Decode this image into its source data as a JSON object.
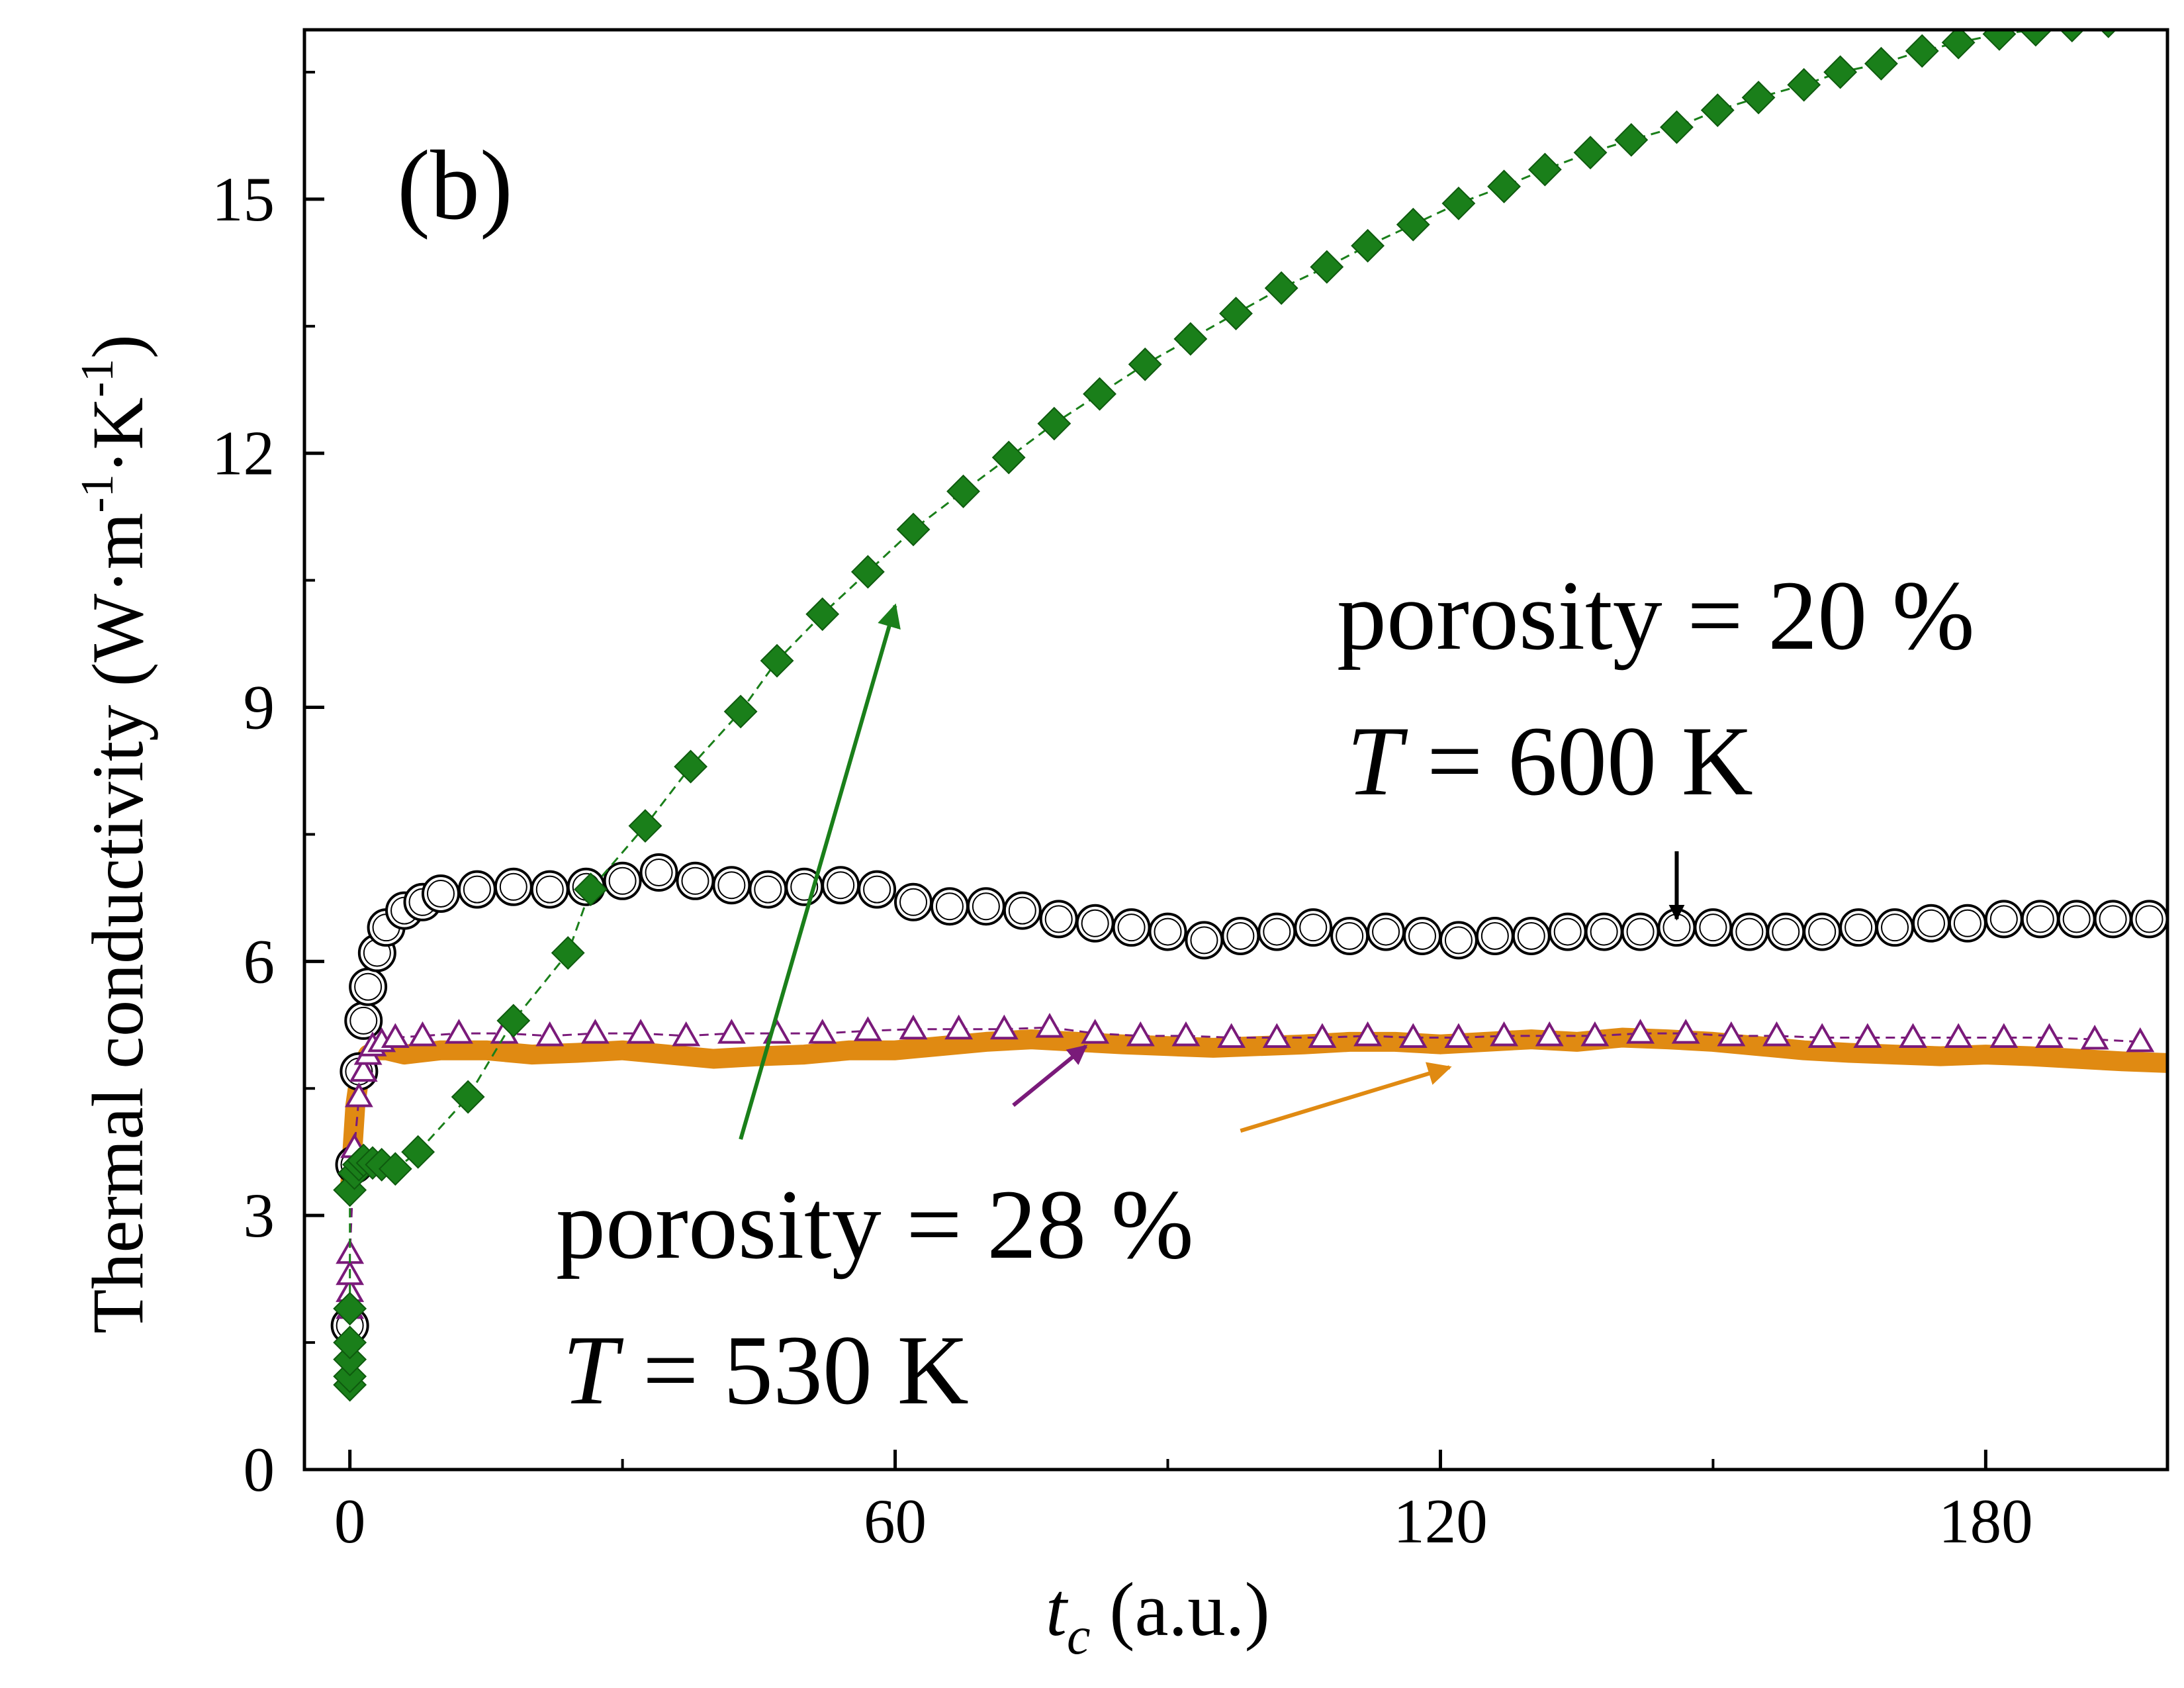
{
  "chart_data": {
    "type": "scatter",
    "panel_label": "(b)",
    "xlabel": {
      "main": "t",
      "sub": "c",
      "rest": " (a.u.)"
    },
    "ylabel": {
      "main": "Thermal conductivity (W·m",
      "sup1": "-1",
      "mid": "·K",
      "sup2": "-1",
      "close": ")"
    },
    "xlim": [
      -5,
      200
    ],
    "ylim": [
      0,
      17
    ],
    "xticks": [
      0,
      60,
      120,
      180
    ],
    "yticks": [
      0,
      3,
      6,
      9,
      12,
      15
    ],
    "grid": false,
    "legend": "none",
    "annotations": [
      {
        "line1": "porosity = 20 %",
        "line2_var": "T",
        "line2_rest": " = 600 K"
      },
      {
        "line1": "porosity = 28 %",
        "line2_var": "T",
        "line2_rest": " = 530 K"
      }
    ],
    "series": [
      {
        "marker": "diamond",
        "color": "#1a7f1a",
        "line": "dashed",
        "x": [
          0,
          0,
          0,
          0,
          0,
          0,
          0.5,
          1,
          1.5,
          2.5,
          3.5,
          5,
          7.5,
          13,
          18,
          24,
          26.5,
          32.5,
          37.5,
          43,
          47,
          52,
          57,
          62,
          67.5,
          72.5,
          77.5,
          82.5,
          87.5,
          92.5,
          97.5,
          102.5,
          107.5,
          112,
          117,
          122,
          127,
          131.5,
          136.5,
          141,
          146,
          150.5,
          155,
          160,
          164,
          168.5,
          173,
          177,
          181.5,
          185.5,
          189.5,
          193.5
        ],
        "y": [
          1.0,
          1.1,
          1.3,
          1.5,
          1.9,
          3.3,
          3.5,
          3.6,
          3.65,
          3.62,
          3.6,
          3.55,
          3.75,
          4.4,
          5.3,
          6.1,
          6.85,
          7.6,
          8.3,
          8.95,
          9.55,
          10.1,
          10.6,
          11.1,
          11.55,
          11.95,
          12.35,
          12.7,
          13.05,
          13.35,
          13.65,
          13.95,
          14.2,
          14.45,
          14.7,
          14.95,
          15.15,
          15.35,
          15.55,
          15.7,
          15.85,
          16.05,
          16.2,
          16.35,
          16.5,
          16.6,
          16.75,
          16.85,
          16.95,
          17.0,
          17.05,
          17.1
        ]
      },
      {
        "marker": "circle",
        "color": "#000000",
        "line": "none",
        "x": [
          0,
          0.5,
          1,
          1.5,
          2,
          3,
          4,
          6,
          8,
          10,
          14,
          18,
          22,
          26,
          30,
          34,
          38,
          42,
          46,
          50,
          54,
          58,
          62,
          66,
          70,
          74,
          78,
          82,
          86,
          90,
          94,
          98,
          102,
          106,
          110,
          114,
          118,
          122,
          126,
          130,
          134,
          138,
          142,
          146,
          150,
          154,
          158,
          162,
          166,
          170,
          174,
          178,
          182,
          186,
          190,
          194,
          198
        ],
        "y": [
          1.7,
          3.6,
          4.7,
          5.3,
          5.7,
          6.1,
          6.4,
          6.6,
          6.7,
          6.8,
          6.85,
          6.88,
          6.85,
          6.88,
          6.95,
          7.05,
          6.95,
          6.9,
          6.85,
          6.88,
          6.9,
          6.85,
          6.7,
          6.65,
          6.65,
          6.6,
          6.5,
          6.45,
          6.4,
          6.35,
          6.25,
          6.3,
          6.35,
          6.4,
          6.3,
          6.35,
          6.3,
          6.25,
          6.3,
          6.3,
          6.35,
          6.35,
          6.35,
          6.4,
          6.4,
          6.35,
          6.35,
          6.35,
          6.4,
          6.4,
          6.45,
          6.45,
          6.5,
          6.5,
          6.5,
          6.5,
          6.5
        ]
      },
      {
        "marker": "triangle",
        "color": "#7a1a7a",
        "line": "dashed",
        "x": [
          0,
          0,
          0,
          0,
          0.5,
          1,
          1.5,
          2,
          2.5,
          3.5,
          5,
          8,
          12,
          17,
          22,
          27,
          32,
          37,
          42,
          47,
          52,
          57,
          62,
          67,
          72,
          77,
          82,
          87,
          92,
          97,
          102,
          107,
          112,
          117,
          122,
          127,
          132,
          137,
          142,
          147,
          152,
          157,
          162,
          167,
          172,
          177,
          182,
          187,
          192,
          197
        ],
        "y": [
          1.9,
          2.1,
          2.3,
          2.55,
          3.8,
          4.4,
          4.7,
          4.9,
          5.0,
          5.05,
          5.1,
          5.12,
          5.15,
          5.15,
          5.12,
          5.15,
          5.15,
          5.12,
          5.15,
          5.15,
          5.15,
          5.18,
          5.2,
          5.2,
          5.2,
          5.22,
          5.15,
          5.12,
          5.12,
          5.1,
          5.1,
          5.1,
          5.12,
          5.1,
          5.1,
          5.12,
          5.12,
          5.12,
          5.15,
          5.15,
          5.12,
          5.12,
          5.1,
          5.1,
          5.1,
          5.1,
          5.1,
          5.1,
          5.08,
          5.05
        ]
      },
      {
        "marker": "thick-line",
        "color": "#e08a12",
        "line": "solid",
        "x": [
          0,
          0.3,
          0.6,
          1,
          1.5,
          2,
          3,
          4,
          6,
          10,
          15,
          20,
          25,
          30,
          35,
          40,
          45,
          50,
          55,
          60,
          65,
          70,
          75,
          80,
          85,
          90,
          95,
          100,
          105,
          110,
          115,
          120,
          125,
          130,
          135,
          140,
          145,
          150,
          155,
          160,
          165,
          170,
          175,
          180,
          185,
          190,
          195,
          200
        ],
        "y": [
          3.3,
          3.8,
          4.3,
          4.6,
          4.8,
          4.9,
          4.95,
          4.95,
          4.9,
          4.95,
          4.95,
          4.9,
          4.92,
          4.95,
          4.9,
          4.85,
          4.88,
          4.9,
          4.95,
          4.95,
          5.0,
          5.05,
          5.08,
          5.05,
          5.02,
          5.0,
          4.98,
          5.0,
          5.02,
          5.05,
          5.05,
          5.02,
          5.05,
          5.08,
          5.05,
          5.1,
          5.08,
          5.05,
          5.0,
          4.95,
          4.92,
          4.9,
          4.88,
          4.9,
          4.88,
          4.85,
          4.82,
          4.8
        ]
      }
    ],
    "arrows": [
      {
        "color": "#1a7f1a",
        "from": [
          43,
          3.9
        ],
        "to": [
          60,
          10.2
        ]
      },
      {
        "color": "#7a1a7a",
        "from": [
          73,
          4.3
        ],
        "to": [
          81,
          5.0
        ]
      },
      {
        "color": "#e08a12",
        "from": [
          98,
          4.0
        ],
        "to": [
          121,
          4.75
        ]
      },
      {
        "color": "#000000",
        "from": [
          146,
          7.3
        ],
        "to": [
          146,
          6.5
        ]
      }
    ]
  }
}
